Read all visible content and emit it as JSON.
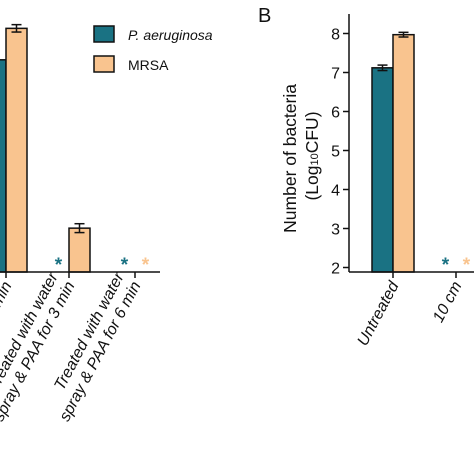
{
  "colors": {
    "pa": "#1a7283",
    "mrsa": "#f9c48f",
    "axis": "#111111"
  },
  "legend": {
    "items": [
      {
        "label": "P. aeruginosa",
        "italic": true
      },
      {
        "label": "MRSA",
        "italic": false
      }
    ]
  },
  "panel_b": {
    "letter": "B"
  },
  "chart_data": [
    {
      "type": "bar",
      "panel": "A",
      "title": "",
      "categories": [
        "6 min",
        "Treated with water spray & PAA for 3 min",
        "Treated with water spray & PAA for 6 min"
      ],
      "series": [
        {
          "name": "P. aeruginosa",
          "values": [
            7.1,
            null,
            null
          ],
          "errors": [
            0,
            null,
            null
          ],
          "not_detected": [
            false,
            true,
            true
          ]
        },
        {
          "name": "MRSA",
          "values": [
            7.95,
            2.55,
            null
          ],
          "errors": [
            0.1,
            0.12,
            null
          ],
          "not_detected": [
            false,
            false,
            true
          ]
        }
      ],
      "ylim": [
        2,
        8.5
      ],
      "not_detected_marker": "*"
    },
    {
      "type": "bar",
      "panel": "B",
      "title": "",
      "ylabel": "Number of bacteria (Log10CFU)",
      "ylabel_line1": "Number of bacteria",
      "ylabel_line2_pre": "(Log",
      "ylabel_line2_sub": "10",
      "ylabel_line2_post": "CFU)",
      "yticks": [
        2,
        3,
        4,
        5,
        6,
        7,
        8
      ],
      "ylim": [
        2,
        8.5
      ],
      "categories": [
        "Untreated",
        "10 cm"
      ],
      "series": [
        {
          "name": "P. aeruginosa",
          "values": [
            7.12,
            null
          ],
          "errors": [
            0.07,
            null
          ],
          "not_detected": [
            false,
            true
          ]
        },
        {
          "name": "MRSA",
          "values": [
            7.97,
            null
          ],
          "errors": [
            0.06,
            null
          ],
          "not_detected": [
            false,
            true
          ]
        }
      ],
      "not_detected_marker": "*"
    }
  ]
}
